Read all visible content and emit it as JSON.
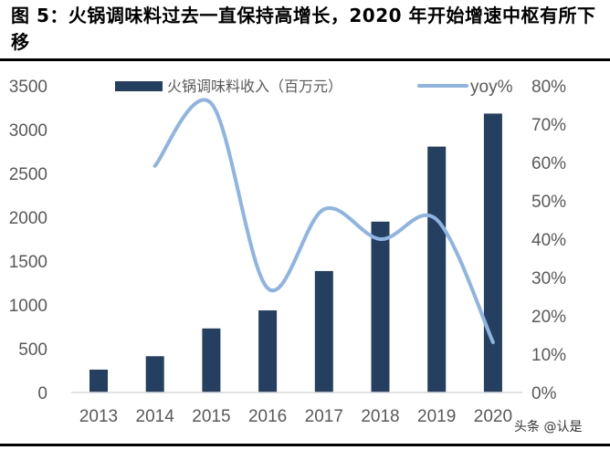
{
  "title": "图 5：火锅调味料过去一直保持高增长，2020 年开始增速中枢有所下移",
  "watermark": "头条 @认是",
  "chart_data": {
    "type": "bar+line",
    "categories": [
      "2013",
      "2014",
      "2015",
      "2016",
      "2017",
      "2018",
      "2019",
      "2020"
    ],
    "series": [
      {
        "name": "火锅调味料收入（百万元）",
        "type": "bar",
        "axis": "left",
        "color": "#243F60",
        "values": [
          261,
          414,
          731,
          937,
          1386,
          1950,
          2806,
          3183
        ]
      },
      {
        "name": "yoy%",
        "type": "line",
        "axis": "right",
        "color": "#8DB4E2",
        "values": [
          null,
          59.1,
          75.4,
          27.2,
          47.8,
          40.0,
          45.1,
          13.1
        ]
      }
    ],
    "left_axis": {
      "ylim": [
        0,
        3500
      ],
      "ticks": [
        "0",
        "500",
        "1000",
        "1500",
        "2000",
        "2500",
        "3000",
        "3500"
      ]
    },
    "right_axis": {
      "ylim": [
        0,
        80
      ],
      "ticks": [
        "0%",
        "10%",
        "20%",
        "30%",
        "40%",
        "50%",
        "60%",
        "70%",
        "80%"
      ]
    },
    "legend": {
      "position": "top",
      "labels": [
        "火锅调味料收入（百万元）",
        "yoy%"
      ]
    },
    "grid": false
  }
}
